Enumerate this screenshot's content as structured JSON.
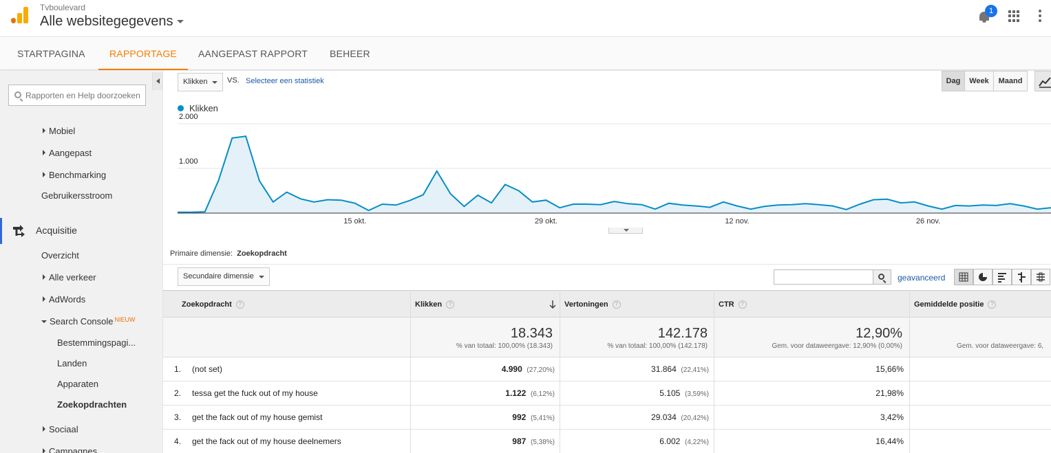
{
  "header": {
    "account": "Tvboulevard",
    "property": "Alle websitegegevens",
    "notification_count": "1"
  },
  "tabs": [
    {
      "label": "STARTPAGINA"
    },
    {
      "label": "RAPPORTAGE"
    },
    {
      "label": "AANGEPAST RAPPORT"
    },
    {
      "label": "BEHEER"
    }
  ],
  "sidebar": {
    "search_placeholder": "Rapporten en Help doorzoeken",
    "items": {
      "mobiel": "Mobiel",
      "aangepast": "Aangepast",
      "benchmarking": "Benchmarking",
      "gebruikersstroom": "Gebruikersstroom",
      "acquisitie": "Acquisitie",
      "overzicht": "Overzicht",
      "alle_verkeer": "Alle verkeer",
      "adwords": "AdWords",
      "search_console": "Search Console",
      "nieuw": "NIEUW",
      "bestemmingspaginas": "Bestemmingspagi...",
      "landen": "Landen",
      "apparaten": "Apparaten",
      "zoekopdrachten": "Zoekopdrachten",
      "sociaal": "Sociaal",
      "campagnes": "Campagnes"
    }
  },
  "controls": {
    "metric": "Klikken",
    "vs": "VS.",
    "select_stat": "Selecteer een statistiek",
    "period": [
      "Dag",
      "Week",
      "Maand"
    ]
  },
  "chart_data": {
    "type": "area",
    "series": [
      {
        "name": "Klikken",
        "values": [
          20,
          20,
          30,
          730,
          1680,
          1720,
          720,
          250,
          470,
          320,
          250,
          300,
          290,
          220,
          60,
          200,
          180,
          280,
          410,
          940,
          430,
          150,
          400,
          230,
          640,
          500,
          250,
          290,
          120,
          200,
          200,
          190,
          260,
          210,
          190,
          90,
          220,
          180,
          160,
          130,
          250,
          160,
          90,
          150,
          180,
          190,
          210,
          190,
          160,
          80,
          200,
          300,
          310,
          230,
          250,
          160,
          90,
          170,
          160,
          180,
          170,
          210,
          160,
          90,
          120
        ]
      }
    ],
    "x_tick_labels": [
      "15 okt.",
      "29 okt.",
      "12 nov.",
      "26 nov."
    ],
    "y_tick_labels": [
      "2.000",
      "1.000"
    ],
    "ylim": [
      0,
      2000
    ],
    "color": "#058dc7",
    "fill_color": "#e5f1f9",
    "grid": true
  },
  "dimension": {
    "primary_label": "Primaire dimensie:",
    "primary_value": "Zoekopdracht",
    "secondary": "Secundaire dimensie",
    "advanced": "geavanceerd"
  },
  "table": {
    "headers": [
      "Zoekopdracht",
      "Klikken",
      "Vertoningen",
      "CTR",
      "Gemiddelde positie"
    ],
    "totals": {
      "klikken": "18.343",
      "klikken_sub": "% van totaal: 100,00% (18.343)",
      "vertoningen": "142.178",
      "vertoningen_sub": "% van totaal: 100,00% (142.178)",
      "ctr": "12,90%",
      "ctr_sub": "Gem. voor dataweergave: 12,90% (0,00%)",
      "positie_sub": "Gem. voor dataweergave: 6,"
    },
    "rows": [
      {
        "idx": "1.",
        "query": "(not set)",
        "klikken": "4.990",
        "klikken_pct": "(27,20%)",
        "vertoningen": "31.864",
        "vertoningen_pct": "(22,41%)",
        "ctr": "15,66%"
      },
      {
        "idx": "2.",
        "query": "tessa get the fuck out of my house",
        "klikken": "1.122",
        "klikken_pct": "(6,12%)",
        "vertoningen": "5.105",
        "vertoningen_pct": "(3,59%)",
        "ctr": "21,98%"
      },
      {
        "idx": "3.",
        "query": "get the fack out of my house gemist",
        "klikken": "992",
        "klikken_pct": "(5,41%)",
        "vertoningen": "29.034",
        "vertoningen_pct": "(20,42%)",
        "ctr": "3,42%"
      },
      {
        "idx": "4.",
        "query": "get the fack out of my house deelnemers",
        "klikken": "987",
        "klikken_pct": "(5,38%)",
        "vertoningen": "6.002",
        "vertoningen_pct": "(4,22%)",
        "ctr": "16,44%"
      }
    ]
  }
}
